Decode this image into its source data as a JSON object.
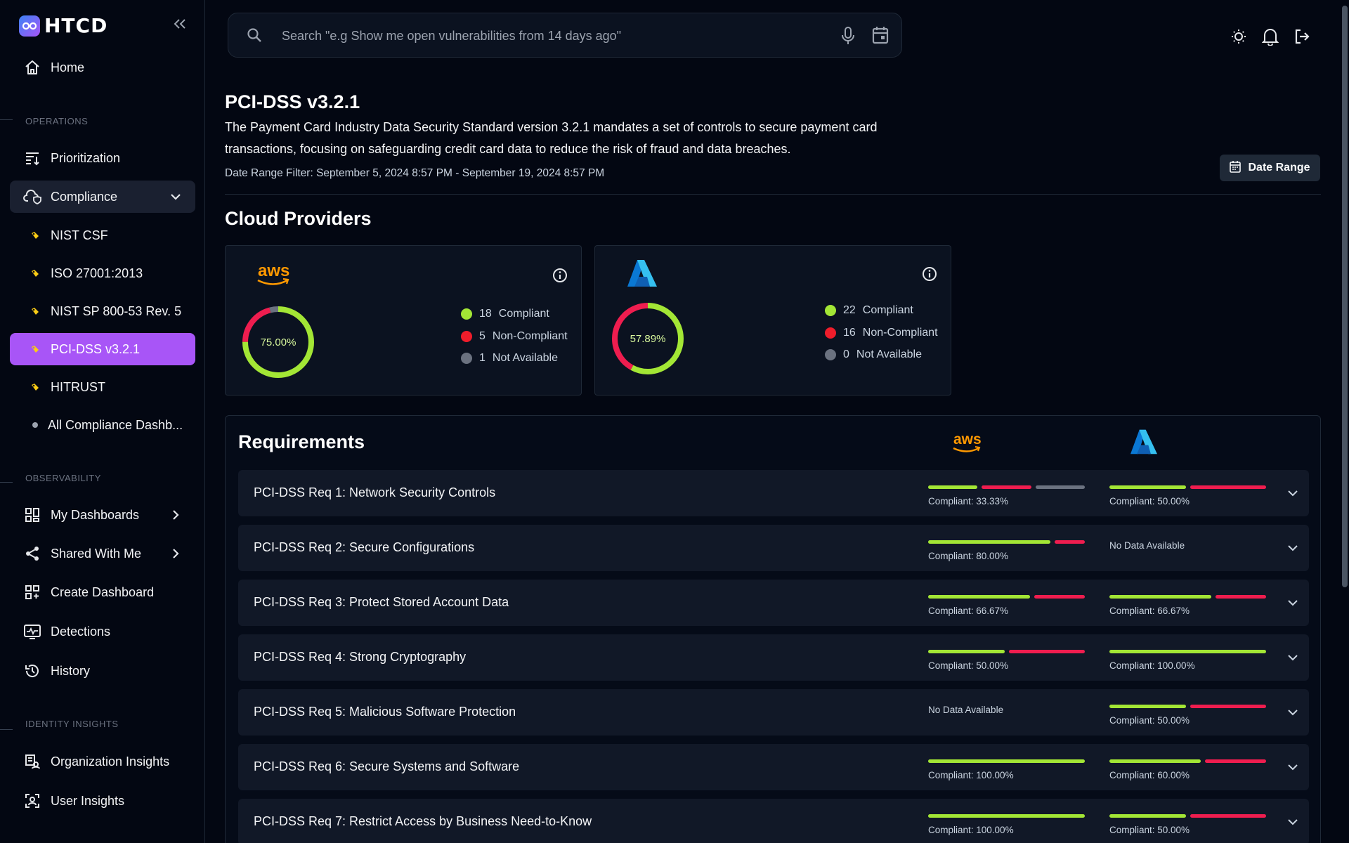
{
  "app": {
    "name": "HTCD"
  },
  "sidebar": {
    "home": "Home",
    "operations_label": "OPERATIONS",
    "prioritization": "Prioritization",
    "compliance": "Compliance",
    "compliance_items": [
      "NIST CSF",
      "ISO 27001:2013",
      "NIST SP 800-53 Rev. 5",
      "PCI-DSS v3.2.1",
      "HITRUST",
      "All Compliance Dashb..."
    ],
    "observability_label": "OBSERVABILITY",
    "my_dashboards": "My Dashboards",
    "shared_with_me": "Shared With Me",
    "create_dashboard": "Create Dashboard",
    "detections": "Detections",
    "history": "History",
    "identity_label": "IDENTITY INSIGHTS",
    "organization_insights": "Organization Insights",
    "user_insights": "User Insights"
  },
  "search": {
    "placeholder": "Search \"e.g Show me open vulnerabilities from 14 days ago\""
  },
  "header": {
    "title": "PCI-DSS v3.2.1",
    "description": "The Payment Card Industry Data Security Standard version 3.2.1 mandates a set of controls to secure payment card transactions, focusing on safeguarding credit card data to reduce the risk of fraud and data breaches.",
    "date_filter": "Date Range Filter: September 5, 2024 8:57 PM - September 19, 2024 8:57 PM",
    "date_range_button": "Date Range"
  },
  "cloud_providers": {
    "title": "Cloud Providers",
    "cards": [
      {
        "provider": "aws",
        "logo_text": "aws",
        "percent_label": "75.00%",
        "compliant": 18,
        "non_compliant": 5,
        "not_available": 1
      },
      {
        "provider": "azure",
        "percent_label": "57.89%",
        "compliant": 22,
        "non_compliant": 16,
        "not_available": 0
      }
    ],
    "legend": {
      "compliant": "Compliant",
      "non_compliant": "Non-Compliant",
      "not_available": "Not Available"
    }
  },
  "requirements": {
    "title": "Requirements",
    "aws_logo_text": "aws",
    "nodata_text": "No Data Available",
    "rows": [
      {
        "name": "PCI-DSS Req 1: Network Security Controls",
        "aws": {
          "label": "Compliant: 33.33%",
          "segments": [
            1,
            1,
            1
          ]
        },
        "azure": {
          "label": "Compliant: 50.00%",
          "segments": [
            1,
            1,
            0
          ]
        }
      },
      {
        "name": "PCI-DSS Req 2: Secure Configurations",
        "aws": {
          "label": "Compliant: 80.00%",
          "segments": [
            4,
            1,
            0
          ]
        },
        "azure": null
      },
      {
        "name": "PCI-DSS Req 3: Protect Stored Account Data",
        "aws": {
          "label": "Compliant: 66.67%",
          "segments": [
            2,
            1,
            0
          ]
        },
        "azure": {
          "label": "Compliant: 66.67%",
          "segments": [
            2,
            1,
            0
          ]
        }
      },
      {
        "name": "PCI-DSS Req 4: Strong Cryptography",
        "aws": {
          "label": "Compliant: 50.00%",
          "segments": [
            1,
            1,
            0
          ]
        },
        "azure": {
          "label": "Compliant: 100.00%",
          "segments": [
            1,
            0,
            0
          ]
        }
      },
      {
        "name": "PCI-DSS Req 5: Malicious Software Protection",
        "aws": null,
        "azure": {
          "label": "Compliant: 50.00%",
          "segments": [
            1,
            1,
            0
          ]
        }
      },
      {
        "name": "PCI-DSS Req 6: Secure Systems and Software",
        "aws": {
          "label": "Compliant: 100.00%",
          "segments": [
            1,
            0,
            0
          ]
        },
        "azure": {
          "label": "Compliant: 60.00%",
          "segments": [
            3,
            2,
            0
          ]
        }
      },
      {
        "name": "PCI-DSS Req 7: Restrict Access by Business Need-to-Know",
        "aws": {
          "label": "Compliant: 100.00%",
          "segments": [
            1,
            0,
            0
          ]
        },
        "azure": {
          "label": "Compliant: 50.00%",
          "segments": [
            1,
            1,
            0
          ]
        }
      }
    ]
  },
  "colors": {
    "compliant": "#a3e635",
    "non_compliant": "#ef1d4f",
    "not_available": "#6b7280",
    "accent": "#a855f7",
    "aws_orange": "#ff9900",
    "azure_blue": "#0a84d6"
  }
}
